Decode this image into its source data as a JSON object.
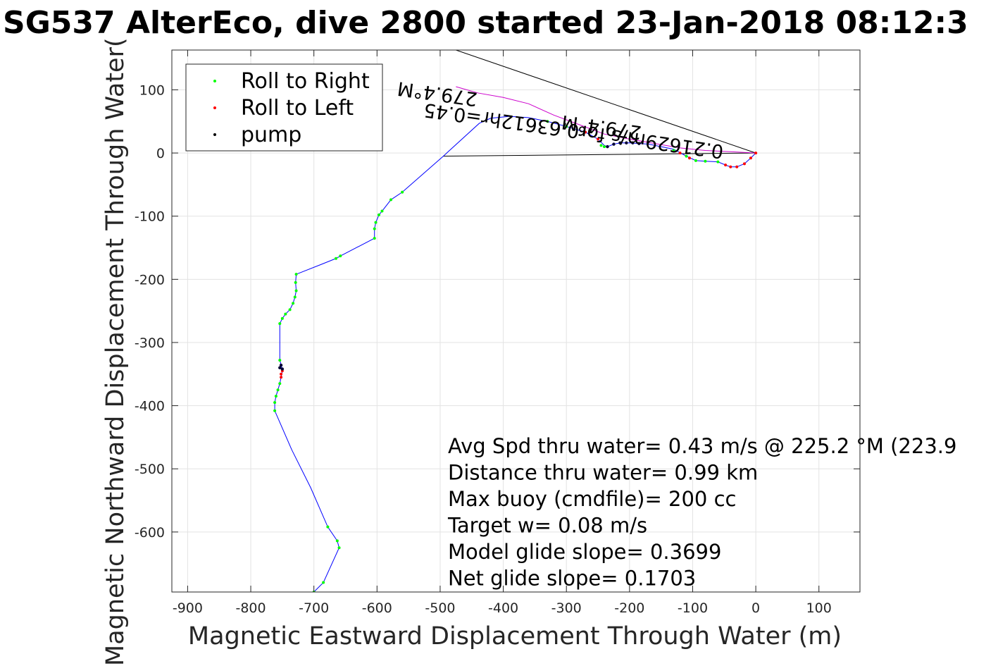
{
  "chart_data": {
    "type": "scatter",
    "title": "SG537 AlterEco, dive 2800 started 23-Jan-2018 08:12:3",
    "xlabel": "Magnetic Eastward Displacement Through Water (m)",
    "ylabel": "Magnetic Northward Displacement Through Water(",
    "xlim": [
      -925,
      165
    ],
    "ylim": [
      -695,
      163
    ],
    "xticks": [
      -900,
      -800,
      -700,
      -600,
      -500,
      -400,
      -300,
      -200,
      -100,
      0,
      100
    ],
    "yticks": [
      -600,
      -500,
      -400,
      -300,
      -200,
      -100,
      0,
      100
    ],
    "grid": true,
    "legend_position": "top-left",
    "legend": [
      {
        "label": "Roll to Right",
        "color": "#00ff00"
      },
      {
        "label": "Roll to Left",
        "color": "#ff0000"
      },
      {
        "label": "pump",
        "color": "#000000"
      }
    ],
    "track_color": "#0000ff",
    "track": [
      [
        -700,
        -695
      ],
      [
        -685,
        -680
      ],
      [
        -660,
        -625
      ],
      [
        -663,
        -614
      ],
      [
        -678,
        -592
      ],
      [
        -705,
        -530
      ],
      [
        -735,
        -470
      ],
      [
        -762,
        -408
      ],
      [
        -762,
        -395
      ],
      [
        -760,
        -385
      ],
      [
        -757,
        -375
      ],
      [
        -754,
        -365
      ],
      [
        -752,
        -355
      ],
      [
        -750,
        -345
      ],
      [
        -752,
        -335
      ],
      [
        -754,
        -328
      ],
      [
        -754,
        -300
      ],
      [
        -754,
        -270
      ],
      [
        -750,
        -262
      ],
      [
        -745,
        -255
      ],
      [
        -738,
        -248
      ],
      [
        -733,
        -238
      ],
      [
        -730,
        -228
      ],
      [
        -728,
        -218
      ],
      [
        -729,
        -205
      ],
      [
        -728,
        -192
      ],
      [
        -690,
        -177
      ],
      [
        -665,
        -167
      ],
      [
        -658,
        -163
      ],
      [
        -604,
        -135
      ],
      [
        -604,
        -120
      ],
      [
        -602,
        -110
      ],
      [
        -597,
        -98
      ],
      [
        -592,
        -92
      ],
      [
        -578,
        -74
      ],
      [
        -560,
        -62
      ],
      [
        -495,
        -5
      ],
      [
        -438,
        47
      ],
      [
        -420,
        55
      ],
      [
        -390,
        58
      ],
      [
        -360,
        56
      ],
      [
        -330,
        50
      ],
      [
        -300,
        42
      ],
      [
        -270,
        33
      ],
      [
        -250,
        22
      ],
      [
        -240,
        12
      ],
      [
        -235,
        10
      ],
      [
        -225,
        14
      ],
      [
        -215,
        16
      ],
      [
        -200,
        16
      ],
      [
        -170,
        14
      ],
      [
        -130,
        6
      ],
      [
        -110,
        -5
      ],
      [
        -95,
        -12
      ],
      [
        -80,
        -13
      ],
      [
        -60,
        -14
      ],
      [
        -48,
        -19
      ],
      [
        -40,
        -22
      ],
      [
        -30,
        -22
      ],
      [
        -18,
        -17
      ],
      [
        -8,
        -8
      ],
      [
        0,
        0
      ]
    ],
    "roll_right": [
      [
        -700,
        -695
      ],
      [
        -685,
        -680
      ],
      [
        -660,
        -625
      ],
      [
        -663,
        -614
      ],
      [
        -678,
        -592
      ],
      [
        -762,
        -408
      ],
      [
        -762,
        -395
      ],
      [
        -760,
        -385
      ],
      [
        -757,
        -375
      ],
      [
        -754,
        -365
      ],
      [
        -754,
        -328
      ],
      [
        -754,
        -270
      ],
      [
        -750,
        -262
      ],
      [
        -745,
        -255
      ],
      [
        -738,
        -248
      ],
      [
        -733,
        -238
      ],
      [
        -730,
        -228
      ],
      [
        -728,
        -218
      ],
      [
        -729,
        -205
      ],
      [
        -728,
        -192
      ],
      [
        -665,
        -167
      ],
      [
        -658,
        -163
      ],
      [
        -604,
        -135
      ],
      [
        -604,
        -120
      ],
      [
        -602,
        -110
      ],
      [
        -597,
        -98
      ],
      [
        -592,
        -92
      ],
      [
        -578,
        -74
      ],
      [
        -560,
        -62
      ],
      [
        -330,
        50
      ],
      [
        -300,
        42
      ],
      [
        -245,
        12
      ],
      [
        -240,
        10
      ],
      [
        -95,
        -12
      ],
      [
        -80,
        -13
      ],
      [
        -60,
        -14
      ],
      [
        -130,
        4
      ],
      [
        -110,
        -5
      ]
    ],
    "roll_left": [
      [
        -752,
        -355
      ],
      [
        -752,
        -350
      ],
      [
        -750,
        -345
      ],
      [
        -270,
        33
      ],
      [
        -250,
        22
      ],
      [
        -120,
        0
      ],
      [
        -105,
        -8
      ],
      [
        -48,
        -19
      ],
      [
        -40,
        -22
      ],
      [
        -30,
        -22
      ],
      [
        -18,
        -17
      ],
      [
        -8,
        -8
      ],
      [
        0,
        0
      ]
    ],
    "pump": [
      [
        -754,
        -340
      ],
      [
        -752,
        -336
      ],
      [
        -750,
        -342
      ],
      [
        -235,
        10
      ],
      [
        -225,
        14
      ],
      [
        -215,
        16
      ],
      [
        -205,
        16
      ],
      [
        -195,
        16
      ],
      [
        -185,
        15
      ]
    ],
    "reference_lines": [
      [
        [
          -475,
          163
        ],
        [
          0,
          0
        ]
      ],
      [
        [
          -495,
          -5
        ],
        [
          0,
          0
        ]
      ]
    ],
    "magenta_path": [
      [
        -475,
        105
      ],
      [
        -440,
        95
      ],
      [
        -400,
        88
      ],
      [
        -360,
        78
      ],
      [
        -320,
        60
      ],
      [
        -280,
        45
      ],
      [
        -240,
        30
      ],
      [
        -200,
        22
      ],
      [
        -160,
        15
      ],
      [
        -120,
        8
      ],
      [
        -80,
        4
      ],
      [
        -40,
        2
      ],
      [
        0,
        0
      ]
    ],
    "rotated_annotations": [
      {
        "text": "0.21629m/s for0.63612hr=0.45",
        "rotation": 188
      },
      {
        "text": "279.4°M",
        "rotation": 188
      },
      {
        "text": "279.4°M",
        "rotation": 188
      }
    ],
    "annotations": [
      "Avg Spd thru water=  0.43 m/s @ 225.2 °M (223.9",
      "Distance thru water=  0.99 km",
      "Max buoy (cmdfile)= 200 cc",
      "Target w= 0.08 m/s",
      "Model glide slope= 0.3699",
      "Net glide slope= 0.1703"
    ]
  }
}
